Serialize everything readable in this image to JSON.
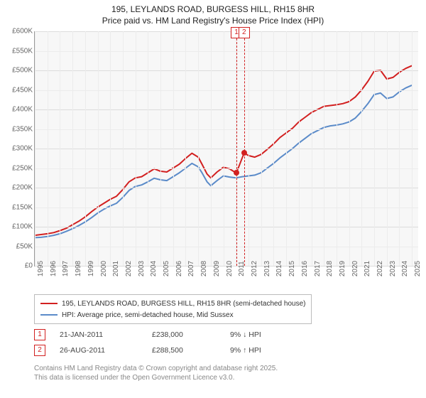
{
  "title_line1": "195, LEYLANDS ROAD, BURGESS HILL, RH15 8HR",
  "title_line2": "Price paid vs. HM Land Registry's House Price Index (HPI)",
  "chart": {
    "type": "line",
    "background_color": "#f7f7f7",
    "grid_major_color": "#dcdcdc",
    "grid_mid_color": "#ececec",
    "axis_color": "#999999",
    "tick_label_fontsize": 10,
    "tick_label_color": "#666666",
    "x": {
      "min": 1995,
      "max": 2025.5,
      "ticks": [
        1995,
        1996,
        1997,
        1998,
        1999,
        2000,
        2001,
        2002,
        2003,
        2004,
        2005,
        2006,
        2007,
        2008,
        2009,
        2010,
        2011,
        2012,
        2013,
        2014,
        2015,
        2016,
        2017,
        2018,
        2019,
        2020,
        2021,
        2022,
        2023,
        2024,
        2025
      ]
    },
    "y": {
      "min": 0,
      "max": 600000,
      "major_ticks": [
        0,
        100000,
        200000,
        300000,
        400000,
        500000,
        600000
      ],
      "minor_ticks": [
        50000,
        150000,
        250000,
        350000,
        450000,
        550000
      ],
      "tick_labels": [
        "£0",
        "£50K",
        "£100K",
        "£150K",
        "£200K",
        "£250K",
        "£300K",
        "£350K",
        "£400K",
        "£450K",
        "£500K",
        "£550K",
        "£600K"
      ],
      "tick_values": [
        0,
        50000,
        100000,
        150000,
        200000,
        250000,
        300000,
        350000,
        400000,
        450000,
        500000,
        550000,
        600000
      ]
    },
    "series": [
      {
        "name": "195, LEYLANDS ROAD, BURGESS HILL, RH15 8HR (semi-detached house)",
        "color": "#d22020",
        "line_width": 2,
        "points": [
          [
            1995,
            78000
          ],
          [
            1995.5,
            80000
          ],
          [
            1996,
            82000
          ],
          [
            1996.5,
            85000
          ],
          [
            1997,
            90000
          ],
          [
            1997.5,
            96000
          ],
          [
            1998,
            105000
          ],
          [
            1998.5,
            114000
          ],
          [
            1999,
            125000
          ],
          [
            1999.5,
            138000
          ],
          [
            2000,
            150000
          ],
          [
            2000.5,
            160000
          ],
          [
            2001,
            170000
          ],
          [
            2001.5,
            178000
          ],
          [
            2002,
            195000
          ],
          [
            2002.5,
            215000
          ],
          [
            2003,
            225000
          ],
          [
            2003.5,
            228000
          ],
          [
            2004,
            238000
          ],
          [
            2004.5,
            248000
          ],
          [
            2005,
            242000
          ],
          [
            2005.5,
            240000
          ],
          [
            2006,
            250000
          ],
          [
            2006.5,
            260000
          ],
          [
            2007,
            275000
          ],
          [
            2007.5,
            288000
          ],
          [
            2008,
            278000
          ],
          [
            2008.3,
            260000
          ],
          [
            2008.7,
            235000
          ],
          [
            2009,
            225000
          ],
          [
            2009.5,
            240000
          ],
          [
            2010,
            252000
          ],
          [
            2010.5,
            248000
          ],
          [
            2011,
            238000
          ],
          [
            2011.04,
            238000
          ],
          [
            2011.65,
            288500
          ],
          [
            2012,
            282000
          ],
          [
            2012.5,
            278000
          ],
          [
            2013,
            285000
          ],
          [
            2013.5,
            298000
          ],
          [
            2014,
            312000
          ],
          [
            2014.5,
            328000
          ],
          [
            2015,
            340000
          ],
          [
            2015.5,
            352000
          ],
          [
            2016,
            368000
          ],
          [
            2016.5,
            380000
          ],
          [
            2017,
            392000
          ],
          [
            2017.5,
            400000
          ],
          [
            2018,
            408000
          ],
          [
            2018.5,
            410000
          ],
          [
            2019,
            412000
          ],
          [
            2019.5,
            415000
          ],
          [
            2020,
            420000
          ],
          [
            2020.5,
            432000
          ],
          [
            2021,
            450000
          ],
          [
            2021.5,
            472000
          ],
          [
            2022,
            498000
          ],
          [
            2022.5,
            500000
          ],
          [
            2023,
            478000
          ],
          [
            2023.5,
            482000
          ],
          [
            2024,
            495000
          ],
          [
            2024.5,
            505000
          ],
          [
            2025,
            512000
          ]
        ]
      },
      {
        "name": "HPI: Average price, semi-detached house, Mid Sussex",
        "color": "#5b8bc9",
        "line_width": 2,
        "points": [
          [
            1995,
            72000
          ],
          [
            1995.5,
            73000
          ],
          [
            1996,
            75000
          ],
          [
            1996.5,
            78000
          ],
          [
            1997,
            82000
          ],
          [
            1997.5,
            88000
          ],
          [
            1998,
            95000
          ],
          [
            1998.5,
            103000
          ],
          [
            1999,
            112000
          ],
          [
            1999.5,
            123000
          ],
          [
            2000,
            135000
          ],
          [
            2000.5,
            145000
          ],
          [
            2001,
            153000
          ],
          [
            2001.5,
            160000
          ],
          [
            2002,
            175000
          ],
          [
            2002.5,
            193000
          ],
          [
            2003,
            203000
          ],
          [
            2003.5,
            207000
          ],
          [
            2004,
            215000
          ],
          [
            2004.5,
            224000
          ],
          [
            2005,
            220000
          ],
          [
            2005.5,
            218000
          ],
          [
            2006,
            228000
          ],
          [
            2006.5,
            238000
          ],
          [
            2007,
            250000
          ],
          [
            2007.5,
            262000
          ],
          [
            2008,
            253000
          ],
          [
            2008.3,
            238000
          ],
          [
            2008.7,
            215000
          ],
          [
            2009,
            205000
          ],
          [
            2009.5,
            218000
          ],
          [
            2010,
            230000
          ],
          [
            2010.5,
            227000
          ],
          [
            2011,
            225000
          ],
          [
            2011.5,
            228000
          ],
          [
            2012,
            230000
          ],
          [
            2012.5,
            232000
          ],
          [
            2013,
            238000
          ],
          [
            2013.5,
            250000
          ],
          [
            2014,
            262000
          ],
          [
            2014.5,
            276000
          ],
          [
            2015,
            288000
          ],
          [
            2015.5,
            300000
          ],
          [
            2016,
            314000
          ],
          [
            2016.5,
            326000
          ],
          [
            2017,
            338000
          ],
          [
            2017.5,
            346000
          ],
          [
            2018,
            354000
          ],
          [
            2018.5,
            358000
          ],
          [
            2019,
            360000
          ],
          [
            2019.5,
            363000
          ],
          [
            2020,
            368000
          ],
          [
            2020.5,
            378000
          ],
          [
            2021,
            395000
          ],
          [
            2021.5,
            415000
          ],
          [
            2022,
            438000
          ],
          [
            2022.5,
            442000
          ],
          [
            2023,
            428000
          ],
          [
            2023.5,
            432000
          ],
          [
            2024,
            445000
          ],
          [
            2024.5,
            455000
          ],
          [
            2025,
            462000
          ]
        ]
      }
    ],
    "event_lines": [
      {
        "id": "1",
        "x": 2011.04,
        "color": "#d22020",
        "marker_y": 238000
      },
      {
        "id": "2",
        "x": 2011.65,
        "color": "#d22020",
        "marker_y": 288500
      }
    ]
  },
  "legend": {
    "border_color": "#bbbbbb",
    "items": [
      {
        "color": "#d22020",
        "label": "195, LEYLANDS ROAD, BURGESS HILL, RH15 8HR (semi-detached house)"
      },
      {
        "color": "#5b8bc9",
        "label": "HPI: Average price, semi-detached house, Mid Sussex"
      }
    ]
  },
  "events": [
    {
      "id": "1",
      "color": "#d22020",
      "date": "21-JAN-2011",
      "price": "£238,000",
      "delta": "9% ↓ HPI"
    },
    {
      "id": "2",
      "color": "#d22020",
      "date": "26-AUG-2011",
      "price": "£288,500",
      "delta": "9% ↑ HPI"
    }
  ],
  "footer_line1": "Contains HM Land Registry data © Crown copyright and database right 2025.",
  "footer_line2": "This data is licensed under the Open Government Licence v3.0."
}
